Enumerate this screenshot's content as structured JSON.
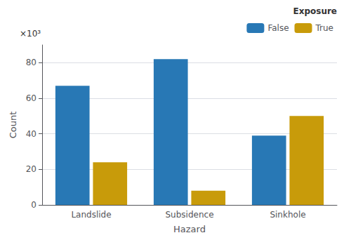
{
  "chart_data": {
    "type": "bar",
    "categories": [
      "Landslide",
      "Subsidence",
      "Sinkhole"
    ],
    "series": [
      {
        "name": "False",
        "color": "#2878B5",
        "values": [
          67000,
          82000,
          39000
        ]
      },
      {
        "name": "True",
        "color": "#C89B0A",
        "values": [
          24000,
          8000,
          50000
        ]
      }
    ],
    "xlabel": "Hazard",
    "ylabel": "Count",
    "legend_title": "Exposure",
    "annotation": "×10³",
    "ylim": [
      0,
      90000
    ],
    "yticks": [
      0,
      {
        "value": 20000,
        "label": "20"
      },
      {
        "value": 40000,
        "label": "40"
      },
      {
        "value": 60000,
        "label": "60"
      },
      {
        "value": 80000,
        "label": "80"
      }
    ],
    "grid": true,
    "legend": "upper right"
  }
}
